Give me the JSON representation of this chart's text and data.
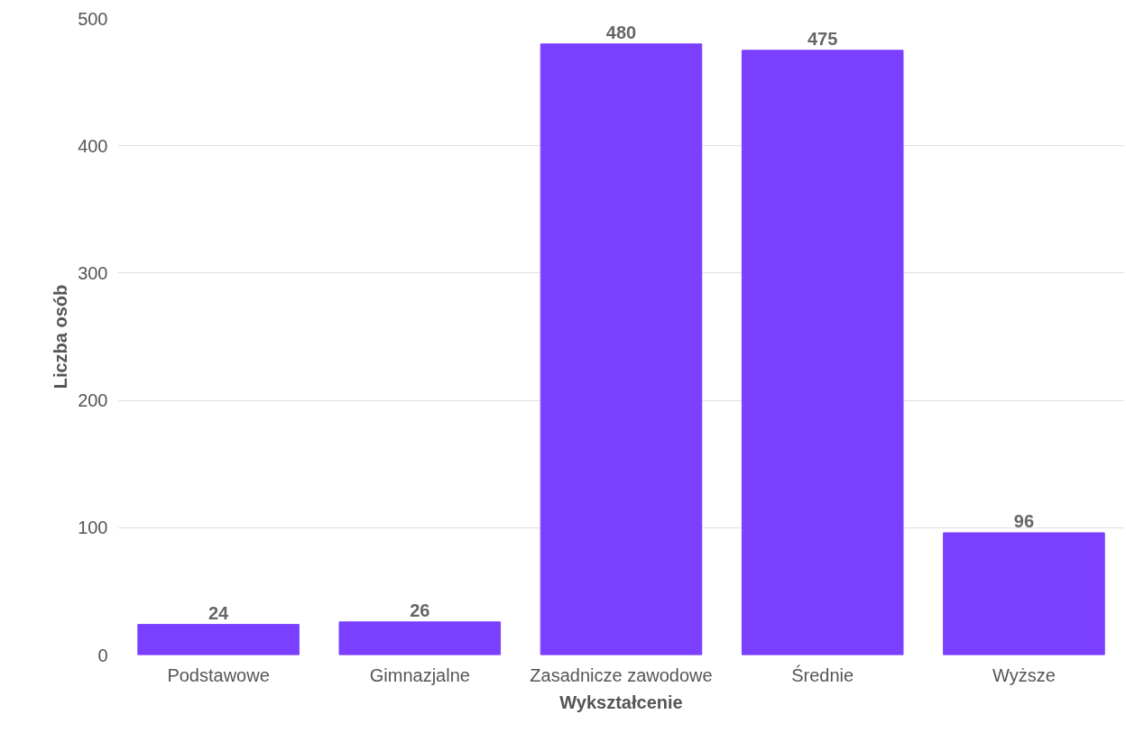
{
  "chart_data": {
    "type": "bar",
    "xlabel": "Wykształcenie",
    "ylabel": "Liczba osób",
    "categories": [
      "Podstawowe",
      "Gimnazjalne",
      "Zasadnicze zawodowe",
      "Średnie",
      "Wyższe"
    ],
    "values": [
      24,
      26,
      480,
      475,
      96
    ],
    "color": "#7b3fff",
    "ylim": [
      0,
      500
    ],
    "yticks": [
      0,
      100,
      200,
      300,
      400,
      500
    ],
    "grid": "y",
    "data_labels": true
  }
}
